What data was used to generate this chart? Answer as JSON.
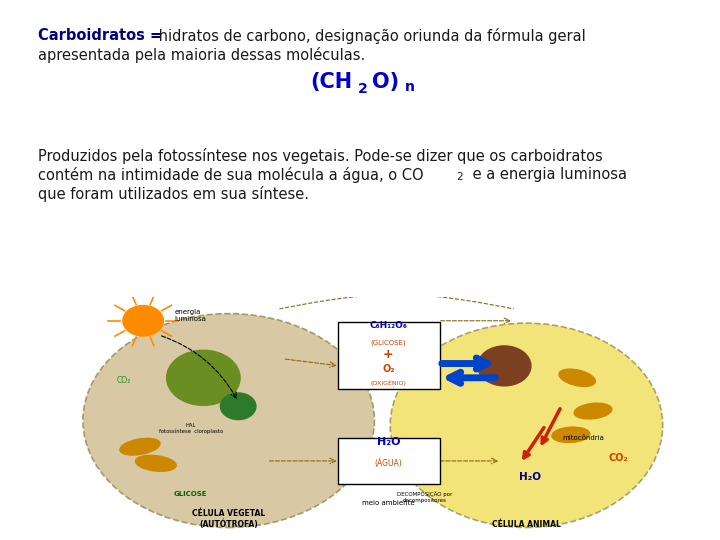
{
  "background_color": "#ffffff",
  "bold_color": "#000080",
  "text_color": "#1a1a1a",
  "formula_color": "#0000cc",
  "font_size_main": 10.5,
  "font_size_formula": 15,
  "font_size_para": 10.5,
  "line1_bold": "Carboidratos =",
  "line1_normal": " hidratos de carbono, designação oriunda da fórmula geral",
  "line2": "apresentada pela maioria dessas moléculas.",
  "para1": "Produzidos pela fotossíntese nos vegetais. Pode-se dizer que os carboidratos",
  "para2a": "contém na intimidade de sua molécula a água, o CO",
  "para2b": " e a energia luminosa",
  "para3": "que foram utilizados em sua síntese.",
  "cell_left_color": "#d4c49a",
  "cell_right_color": "#f0e060",
  "cell_edge_color": "#a09060",
  "sun_color": "#FF8C00",
  "nucleus_left_color": "#6B8E23",
  "chloro_color": "#2d7a2d",
  "mito_color": "#cc8800",
  "nucleus_right_color": "#7a4020",
  "red_arrow_color": "#cc2200",
  "blue_arrow_color": "#0044cc",
  "box_text_blue": "#0000cc",
  "box_text_orange": "#cc4400"
}
